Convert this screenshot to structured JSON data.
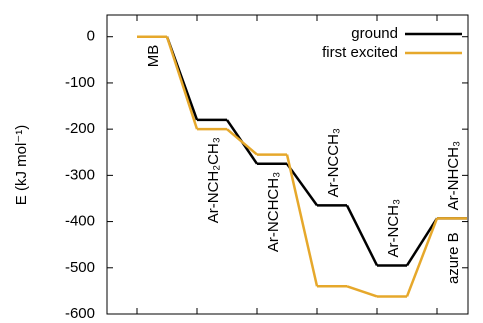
{
  "chart_data": {
    "type": "energy-levels",
    "y_label": "E (kJ mol⁻¹)",
    "categories": [
      "MB",
      "Ar-NCH₂CH₃",
      "Ar-NCHCH₃",
      "Ar-NCCH₃",
      "Ar-NCH₃",
      "Ar-NHCH₃"
    ],
    "annotation": "azure B",
    "series": [
      {
        "name": "ground",
        "color": "#000000",
        "values": [
          0,
          -180,
          -275,
          -365,
          -495,
          -393
        ]
      },
      {
        "name": "first excited",
        "color": "#e6a82b",
        "values": [
          0,
          -200,
          -255,
          -540,
          -562,
          -393
        ]
      }
    ],
    "ylim": [
      -600,
      47
    ],
    "yticks": [
      0,
      -100,
      -200,
      -300,
      -400,
      -500,
      -600
    ],
    "legend": "top-right"
  }
}
